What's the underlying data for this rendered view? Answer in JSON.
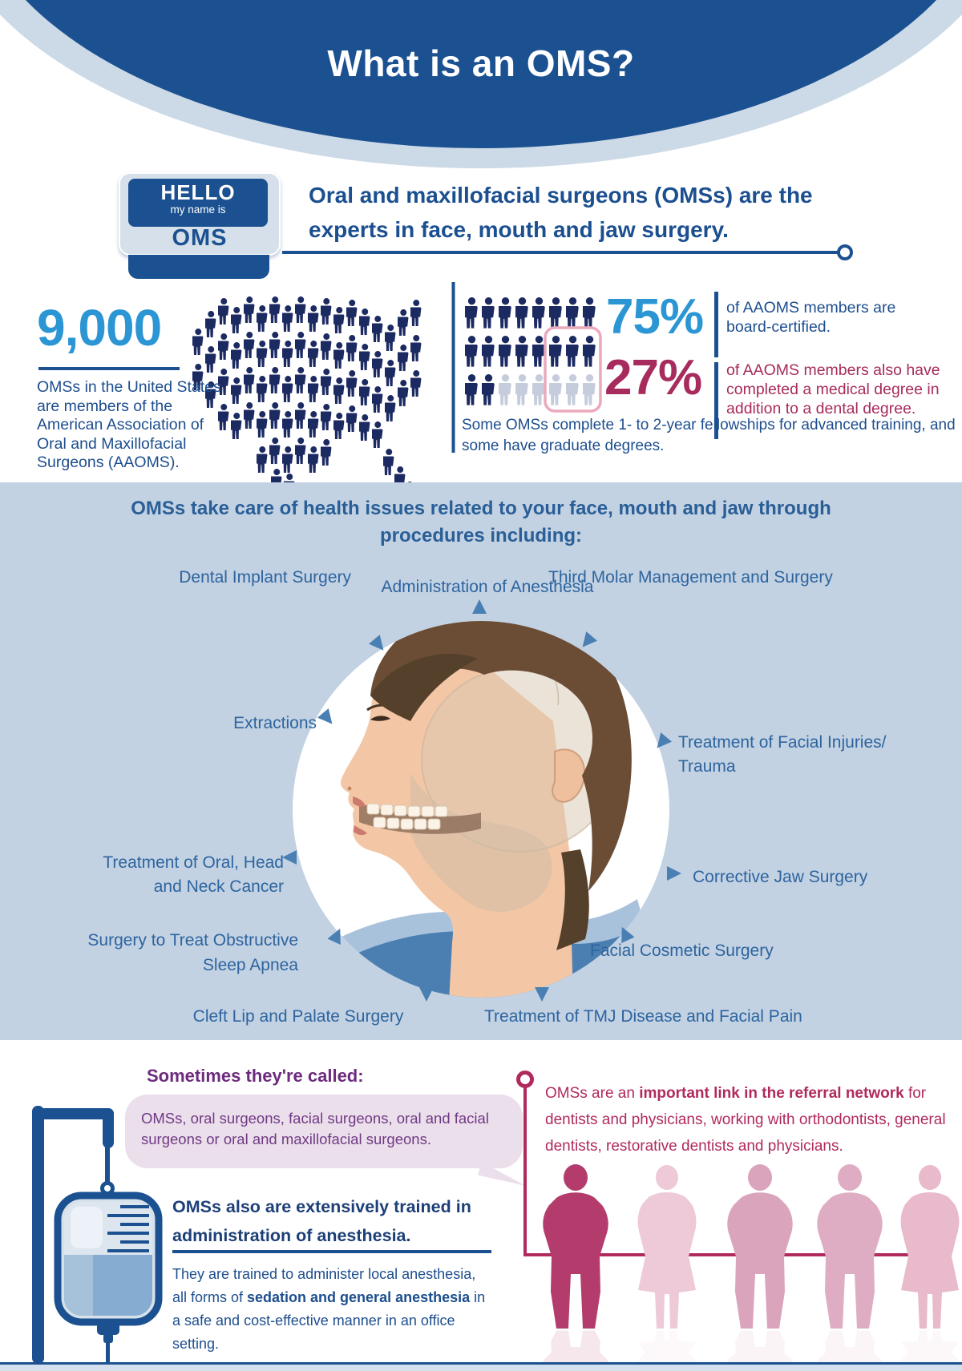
{
  "header": {
    "title": "What is an OMS?"
  },
  "name_badge": {
    "hello": "HELLO",
    "subtitle": "my name is",
    "name": "OMS"
  },
  "intro": {
    "headline": "Oral and maxillofacial surgeons (OMSs) are the experts in face, mouth and jaw surgery."
  },
  "membership": {
    "count": "9,000",
    "caption": "OMSs in the United States are members of the American Association of Oral and Maxillofacial Surgeons (AAOMS).",
    "board_certified_pct": "75%",
    "board_certified_caption": "of AAOMS members are board-certified.",
    "medical_degree_pct": "27%",
    "medical_degree_caption": "of AAOMS members also have completed a medical degree in addition to a dental degree.",
    "fellowship_note": "Some OMSs complete 1- to 2-year fellowships for advanced training, and some have graduate degrees.",
    "icon_grid": {
      "rows": 3,
      "cols": 8,
      "dark_icons": 18,
      "light_icons": 6
    }
  },
  "procedures": {
    "heading": "OMSs take care of health issues related to your face, mouth and jaw through procedures including:",
    "items": [
      "Administration of Anesthesia",
      "Dental Implant Surgery",
      "Third Molar Management and Surgery",
      "Extractions",
      "Treatment of Facial Injuries/ Trauma",
      "Treatment of Oral, Head and Neck Cancer",
      "Corrective Jaw Surgery",
      "Surgery to Treat Obstructive Sleep Apnea",
      "Facial Cosmetic Surgery",
      "Cleft Lip and Palate Surgery",
      "Treatment of TMJ Disease and Facial Pain"
    ]
  },
  "also_called": {
    "heading": "Sometimes they're called:",
    "bubble_text": "OMSs, oral surgeons, facial surgeons, oral and facial surgeons or oral and maxillofacial surgeons."
  },
  "anesthesia": {
    "heading": "OMSs also are extensively trained in administration of anesthesia.",
    "body_pre": "They are trained to administer local anesthesia, all forms of ",
    "body_bold": "sedation and general anesthesia",
    "body_post": " in a safe and cost-effective manner in an office setting."
  },
  "referral": {
    "text_pre": "OMSs are an ",
    "text_bold": "important link in the referral network",
    "text_post": " for dentists and physicians, working with orthodontists, general dentists, restorative dentists and physicians."
  },
  "colors": {
    "header_blue": "#1b5191",
    "band_light": "#ccd9e6",
    "navy_text": "#1d4e8e",
    "sky_blue": "#2b96d3",
    "crimson": "#a72b5c",
    "referral_crimson": "#b02a5e",
    "purple": "#6d2b7e",
    "bubble_bg": "#ecdfec",
    "section_bg": "#c2d2e3",
    "label_blue": "#2e649e",
    "icon_navy": "#1c2a62",
    "icon_gray": "#c5cddd",
    "pink_outline": "#eba9bc"
  }
}
